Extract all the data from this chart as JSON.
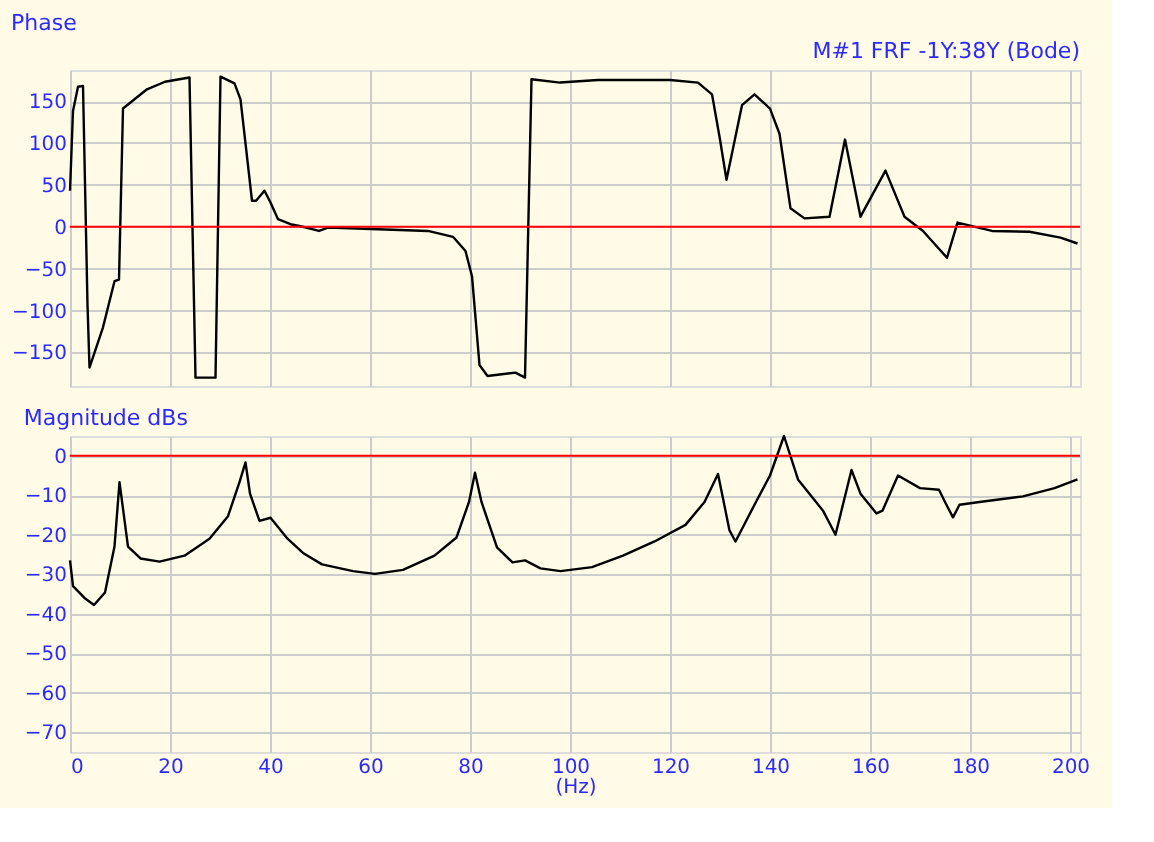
{
  "chart_data": [
    {
      "type": "line",
      "title": "Phase",
      "annotations": [
        "M#1 FRF -1Y:38Y (Bode)"
      ],
      "xlim": [
        0,
        202
      ],
      "xticks": [
        0,
        20,
        40,
        60,
        80,
        100,
        120,
        140,
        160,
        180,
        200
      ],
      "ylim": [
        -190,
        187
      ],
      "yticks": [
        -150,
        -100,
        -50,
        0,
        50,
        100,
        150
      ],
      "grid": true,
      "tick_labels": "y",
      "ref_lines": [
        {
          "axis": "y",
          "value": 0,
          "color": "#ff0000"
        }
      ],
      "series": [
        {
          "color": "#000000",
          "x": [
            0,
            0.6,
            1.6,
            2.6,
            3.5,
            3.9,
            6.6,
            8.9,
            9.8,
            10.6,
            15.4,
            19,
            23.9,
            25.1,
            29.1,
            30.1,
            32.9,
            34.1,
            36.4,
            37.2,
            38.9,
            40.1,
            41.6,
            44.1,
            46.6,
            49.8,
            51.6,
            61.6,
            71.6,
            76.6,
            79.1,
            80.4,
            81.9,
            83.5,
            89.1,
            91,
            92.3,
            98,
            105.6,
            120,
            125.6,
            128.4,
            130,
            131.3,
            134.4,
            136.9,
            140,
            141.9,
            144.1,
            146.9,
            151.9,
            155,
            158.1,
            163.1,
            166.9,
            170.6,
            175.4,
            177.5,
            184.4,
            191.9,
            198.1,
            201.5
          ],
          "values": [
            43,
            138,
            167,
            168,
            -93,
            -168,
            -120,
            -65,
            -63,
            141,
            164,
            173,
            178,
            -180,
            -180,
            179,
            171,
            152,
            31,
            31,
            43,
            29,
            9,
            3,
            0,
            -5,
            -1,
            -3,
            -5,
            -12,
            -29,
            -59,
            -165,
            -178,
            -174,
            -180,
            176,
            172,
            175,
            175,
            172,
            158,
            104,
            56,
            145,
            158,
            141,
            111,
            22,
            10,
            12,
            104,
            12,
            67,
            12,
            -5,
            -37,
            5,
            -5,
            -6,
            -13,
            -20
          ]
        }
      ]
    },
    {
      "type": "line",
      "title": "Magnitude dBs",
      "xlabel": "(Hz)",
      "xlim": [
        0,
        202
      ],
      "xticks": [
        0,
        20,
        40,
        60,
        80,
        100,
        120,
        140,
        160,
        180,
        200
      ],
      "ylim": [
        -75,
        5
      ],
      "yticks": [
        -70,
        -60,
        -50,
        -40,
        -30,
        -20,
        -10,
        0
      ],
      "grid": true,
      "ref_lines": [
        {
          "axis": "y",
          "value": 0,
          "color": "#ff0000"
        }
      ],
      "series": [
        {
          "color": "#000000",
          "x": [
            0,
            0.6,
            2.9,
            4.8,
            7,
            8.9,
            9.9,
            11.6,
            14.1,
            17.9,
            22.9,
            27.9,
            31.6,
            33.9,
            35.1,
            36,
            37.9,
            40.1,
            43.5,
            46.6,
            50.4,
            56.6,
            61,
            66.6,
            72.9,
            77.3,
            79.8,
            81,
            82.3,
            85.4,
            88.5,
            91,
            94.1,
            98.1,
            104.4,
            110.6,
            116.9,
            123.1,
            126.9,
            129.6,
            131.9,
            133.1,
            136.9,
            140,
            142.8,
            145.6,
            150.6,
            153.1,
            156.3,
            158.1,
            161.3,
            162.5,
            165.6,
            170,
            173.8,
            175,
            176.6,
            177.9,
            181.9,
            190.6,
            196.9,
            201.5
          ],
          "values": [
            -26.5,
            -33,
            -36,
            -37.8,
            -34.6,
            -23,
            -6.7,
            -23,
            -26,
            -26.8,
            -25.3,
            -21,
            -15.3,
            -6.7,
            -1.7,
            -9.6,
            -16.5,
            -15.7,
            -21,
            -24.6,
            -27.5,
            -29.2,
            -29.9,
            -28.9,
            -25.3,
            -20.7,
            -11.7,
            -4.3,
            -11.7,
            -23.2,
            -27,
            -26.5,
            -28.5,
            -29.2,
            -28.2,
            -25.3,
            -21.7,
            -17.5,
            -11.7,
            -4.6,
            -18.9,
            -21.7,
            -12.4,
            -5,
            5,
            -6,
            -13.9,
            -20,
            -3.6,
            -9.6,
            -14.6,
            -13.9,
            -5,
            -8.2,
            -8.6,
            -11.7,
            -15.6,
            -12.4,
            -11.7,
            -10.3,
            -8.2,
            -6
          ]
        }
      ]
    }
  ]
}
